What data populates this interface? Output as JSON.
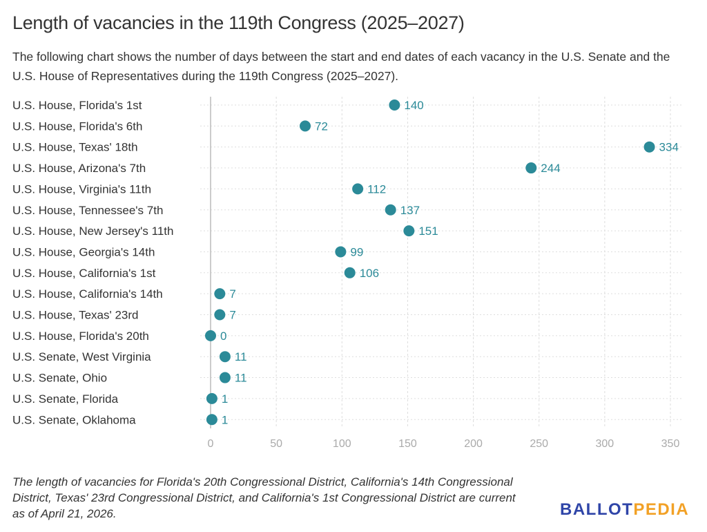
{
  "title": "Length of vacancies in the 119th Congress (2025–2027)",
  "subtitle": "The following chart shows the number of days between the start and end dates of each vacancy in the U.S. Senate and the U.S. House of Representatives during the 119th Congress (2025–2027).",
  "note": "The length of vacancies for Florida's 20th Congressional District, California's 14th Congressional District, Texas' 23rd Congressional District, and California's 1st Congressional District are current as of April 21, 2026.",
  "logo": {
    "part1": "BALLOT",
    "part2": "PEDIA"
  },
  "colors": {
    "dot": "#2b8a98",
    "label": "#2b8a98",
    "grid": "#dddddd",
    "tick": "#aaaaaa"
  },
  "chart_data": {
    "type": "scatter",
    "title": "Length of vacancies in the 119th Congress (2025–2027)",
    "xlim": [
      0,
      360
    ],
    "xticks": [
      0,
      50,
      100,
      150,
      200,
      250,
      300,
      350
    ],
    "grid": true,
    "categories": [
      "U.S. House, Florida's 1st",
      "U.S. House, Florida's 6th",
      "U.S. House, Texas' 18th",
      "U.S. House, Arizona's 7th",
      "U.S. House, Virginia's 11th",
      "U.S. House, Tennessee's 7th",
      "U.S. House, New Jersey's 11th",
      "U.S. House, Georgia's 14th",
      "U.S. House, California's 1st",
      "U.S. House, California's 14th",
      "U.S. House, Texas' 23rd",
      "U.S. House, Florida's 20th",
      "U.S. Senate, West Virginia",
      "U.S. Senate, Ohio",
      "U.S. Senate, Florida",
      "U.S. Senate, Oklahoma"
    ],
    "values": [
      140,
      72,
      334,
      244,
      112,
      137,
      151,
      99,
      106,
      7,
      7,
      0,
      11,
      11,
      1,
      1
    ]
  }
}
